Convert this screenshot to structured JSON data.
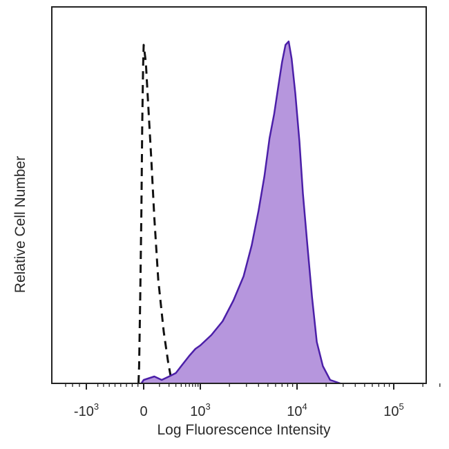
{
  "chart_data": {
    "type": "area",
    "xlabel": "Log Fluorescence Intensity",
    "ylabel": "Relative Cell Number",
    "x_scale": "biexponential",
    "x_ticks": [
      {
        "value": -1000,
        "base": "-10",
        "exp": "3"
      },
      {
        "value": 0,
        "base": "0",
        "exp": ""
      },
      {
        "value": 1000,
        "base": "10",
        "exp": "3"
      },
      {
        "value": 10000,
        "base": "10",
        "exp": "4"
      },
      {
        "value": 100000,
        "base": "10",
        "exp": "5"
      }
    ],
    "ylim": [
      0,
      1
    ],
    "grid": false,
    "series": [
      {
        "style": "dashed",
        "color": "#111111",
        "fill": "none",
        "points": [
          [
            -90,
            0.0
          ],
          [
            -80,
            0.05
          ],
          [
            -60,
            0.25
          ],
          [
            -40,
            0.5
          ],
          [
            -25,
            0.75
          ],
          [
            -10,
            0.92
          ],
          [
            0,
            0.98
          ],
          [
            10,
            0.93
          ],
          [
            20,
            0.83
          ],
          [
            40,
            0.65
          ],
          [
            60,
            0.48
          ],
          [
            90,
            0.3
          ],
          [
            140,
            0.15
          ],
          [
            190,
            0.06
          ],
          [
            240,
            0.0
          ]
        ]
      },
      {
        "style": "solid",
        "color": "#4b1fa8",
        "fill": "#b696dd",
        "points": [
          [
            -40,
            0.0
          ],
          [
            0,
            0.01
          ],
          [
            60,
            0.02
          ],
          [
            120,
            0.01
          ],
          [
            200,
            0.02
          ],
          [
            300,
            0.03
          ],
          [
            400,
            0.05
          ],
          [
            600,
            0.08
          ],
          [
            800,
            0.1
          ],
          [
            1000,
            0.11
          ],
          [
            1300,
            0.14
          ],
          [
            1700,
            0.18
          ],
          [
            2200,
            0.24
          ],
          [
            2800,
            0.31
          ],
          [
            3400,
            0.4
          ],
          [
            4000,
            0.5
          ],
          [
            4600,
            0.6
          ],
          [
            5200,
            0.71
          ],
          [
            5800,
            0.78
          ],
          [
            6400,
            0.86
          ],
          [
            7000,
            0.93
          ],
          [
            7600,
            0.98
          ],
          [
            8200,
            0.99
          ],
          [
            8800,
            0.94
          ],
          [
            9600,
            0.84
          ],
          [
            10600,
            0.7
          ],
          [
            11500,
            0.55
          ],
          [
            12800,
            0.4
          ],
          [
            14300,
            0.25
          ],
          [
            16000,
            0.12
          ],
          [
            18500,
            0.05
          ],
          [
            22000,
            0.01
          ],
          [
            28000,
            0.0
          ]
        ]
      }
    ]
  }
}
